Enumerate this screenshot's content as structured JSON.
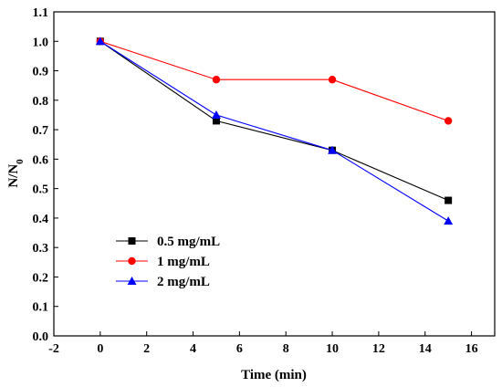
{
  "chart_data": {
    "type": "line",
    "title": "",
    "xlabel": "Time (min)",
    "ylabel": {
      "base": "N/N",
      "subscript": "0"
    },
    "xlim": [
      -2,
      17
    ],
    "ylim": [
      0.0,
      1.1
    ],
    "xticks": [
      "-2",
      "0",
      "2",
      "4",
      "6",
      "8",
      "10",
      "12",
      "14",
      "16"
    ],
    "yticks": [
      "0.0",
      "0.1",
      "0.2",
      "0.3",
      "0.4",
      "0.5",
      "0.6",
      "0.7",
      "0.8",
      "0.9",
      "1.0",
      "1.1"
    ],
    "grid": false,
    "legend_position": "lower-left",
    "x": [
      0,
      5,
      10,
      15
    ],
    "series": [
      {
        "name": "0.5 mg/mL",
        "color": "#000000",
        "marker": "square",
        "values": [
          1.0,
          0.73,
          0.63,
          0.46
        ]
      },
      {
        "name": "1 mg/mL",
        "color": "#ff0000",
        "marker": "circle",
        "values": [
          1.0,
          0.87,
          0.87,
          0.73
        ]
      },
      {
        "name": "2 mg/mL",
        "color": "#0000ff",
        "marker": "triangle",
        "values": [
          1.0,
          0.75,
          0.63,
          0.39
        ]
      }
    ]
  }
}
